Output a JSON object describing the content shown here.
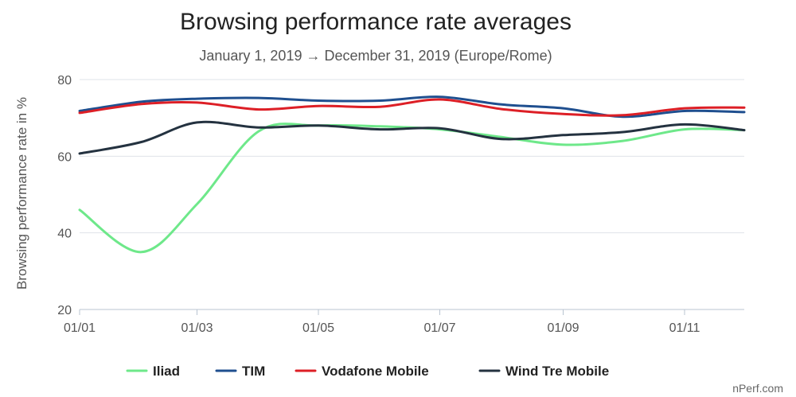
{
  "chart_data": {
    "type": "line",
    "title": "Browsing performance rate averages",
    "subtitle": "January 1, 2019 → December 31, 2019 (Europe/Rome)",
    "xlabel": "",
    "ylabel": "Browsing performance rate in %",
    "ylim": [
      20,
      80
    ],
    "yticks": [
      20,
      40,
      60,
      80
    ],
    "xlim": [
      "2019-01-01",
      "2019-12-01"
    ],
    "xticks": [
      "01/01",
      "01/03",
      "01/05",
      "01/07",
      "01/09",
      "01/11"
    ],
    "x": [
      "2019-01-01",
      "2019-02-01",
      "2019-03-01",
      "2019-04-01",
      "2019-05-01",
      "2019-06-01",
      "2019-07-01",
      "2019-08-01",
      "2019-09-01",
      "2019-10-01",
      "2019-11-01",
      "2019-12-01"
    ],
    "grid": true,
    "legend": "bottom",
    "series": [
      {
        "name": "Iliad",
        "color": "#6ee88a",
        "values": [
          46,
          35,
          47.5,
          66.5,
          68,
          67.8,
          67,
          65,
          63,
          64,
          67,
          66.8
        ]
      },
      {
        "name": "TIM",
        "color": "#1f4f8f",
        "values": [
          71.8,
          74.2,
          75,
          75.2,
          74.5,
          74.5,
          75.5,
          73.5,
          72.5,
          70.3,
          71.8,
          71.5
        ]
      },
      {
        "name": "Vodafone Mobile",
        "color": "#dd1f26",
        "values": [
          71.3,
          73.6,
          74,
          72.2,
          73.1,
          72.9,
          74.8,
          72.3,
          71,
          70.7,
          72.5,
          72.7
        ]
      },
      {
        "name": "Wind Tre Mobile",
        "color": "#243240",
        "values": [
          60.7,
          63.7,
          68.8,
          67.5,
          68,
          67,
          67.3,
          64.5,
          65.5,
          66.3,
          68.3,
          66.8
        ]
      }
    ]
  },
  "credit": "nPerf.com"
}
